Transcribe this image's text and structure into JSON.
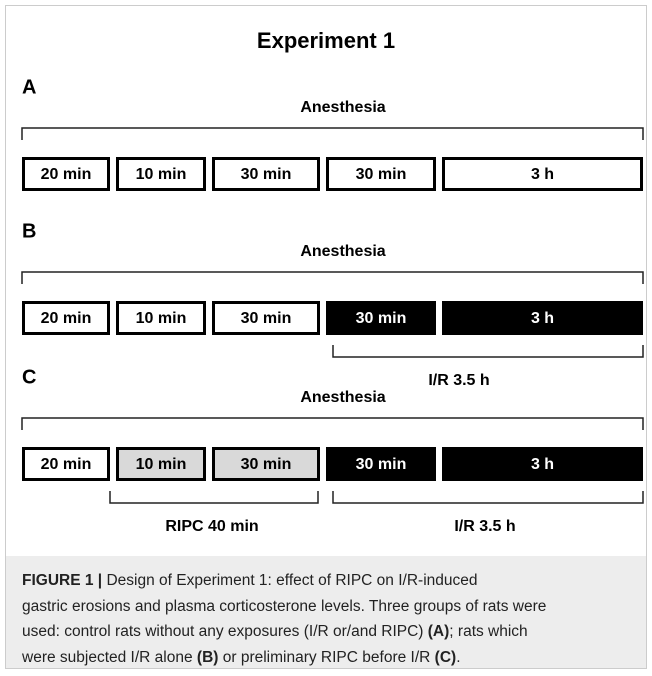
{
  "title": "Experiment 1",
  "panels": [
    {
      "label": "A",
      "span": "Anesthesia",
      "boxes": [
        {
          "text": "20 min",
          "fill": "white"
        },
        {
          "text": "10 min",
          "fill": "white"
        },
        {
          "text": "30 min",
          "fill": "white"
        },
        {
          "text": "30 min",
          "fill": "white"
        },
        {
          "text": "3 h",
          "fill": "white"
        }
      ],
      "brackets": []
    },
    {
      "label": "B",
      "span": "Anesthesia",
      "boxes": [
        {
          "text": "20 min",
          "fill": "white"
        },
        {
          "text": "10 min",
          "fill": "white"
        },
        {
          "text": "30 min",
          "fill": "white"
        },
        {
          "text": "30 min",
          "fill": "black"
        },
        {
          "text": "3 h",
          "fill": "black"
        }
      ],
      "brackets": [
        "I/R 3.5 h"
      ]
    },
    {
      "label": "C",
      "span": "Anesthesia",
      "boxes": [
        {
          "text": "20 min",
          "fill": "white"
        },
        {
          "text": "10 min",
          "fill": "lightgray"
        },
        {
          "text": "30 min",
          "fill": "lightgray"
        },
        {
          "text": "30 min",
          "fill": "black"
        },
        {
          "text": "3 h",
          "fill": "black"
        }
      ],
      "brackets": [
        "RIPC 40 min",
        "I/R 3.5 h"
      ]
    }
  ],
  "caption": [
    [
      {
        "text": "FIGURE 1 |",
        "bold": true
      },
      {
        "text": " Design of Experiment 1: effect of RIPC on I/R-induced",
        "bold": false
      }
    ],
    [
      {
        "text": "gastric erosions and plasma corticosterone levels. Three groups of rats were",
        "bold": false
      }
    ],
    [
      {
        "text": "used: control rats without any exposures (I/R or/and RIPC) ",
        "bold": false
      },
      {
        "text": "(A)",
        "bold": true
      },
      {
        "text": "; rats which",
        "bold": false
      }
    ],
    [
      {
        "text": "were subjected I/R alone ",
        "bold": false
      },
      {
        "text": "(B)",
        "bold": true
      },
      {
        "text": " or preliminary RIPC before I/R ",
        "bold": false
      },
      {
        "text": "(C)",
        "bold": true
      },
      {
        "text": ".",
        "bold": false
      }
    ]
  ]
}
